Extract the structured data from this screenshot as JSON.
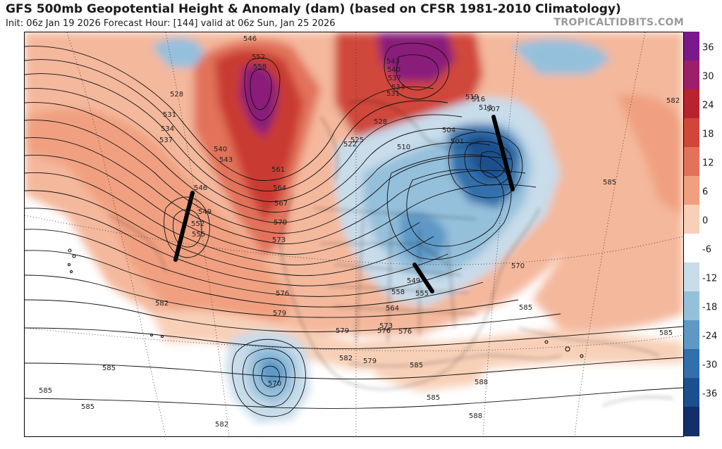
{
  "header": {
    "title": "GFS 500mb Geopotential Height & Anomaly (dam) (based on CFSR 1981-2010 Climatology)",
    "subtitle": "Init: 06z Jan 19 2026   Forecast Hour: [144]   valid at 06z Sun, Jan 25 2026",
    "brand": "TROPICALTIDBITS.COM"
  },
  "colorbar": {
    "ticks": [
      "36",
      "30",
      "24",
      "18",
      "12",
      "6",
      "0",
      "-6",
      "-12",
      "-18",
      "-24",
      "-30",
      "-36"
    ],
    "colors": [
      "#7a1a8a",
      "#9c1f6a",
      "#b8242e",
      "#d0463a",
      "#e2725a",
      "#f0a080",
      "#f8d0b8",
      "#ffffff",
      "#c8dcea",
      "#95c0dc",
      "#5d98c6",
      "#3170ab",
      "#1c4f8e",
      "#122f6a"
    ]
  },
  "map": {
    "contour_labels": [
      "546",
      "552",
      "558",
      "528",
      "531",
      "534",
      "537",
      "540",
      "543",
      "546",
      "549",
      "552",
      "555",
      "561",
      "564",
      "567",
      "570",
      "573",
      "576",
      "579",
      "582",
      "585",
      "507",
      "513",
      "516",
      "519",
      "504",
      "510",
      "522",
      "525",
      "528",
      "531",
      "534",
      "537",
      "540",
      "543",
      "501",
      "549",
      "555",
      "558",
      "564",
      "573",
      "576",
      "579",
      "582",
      "585",
      "588",
      "570",
      "585",
      "582",
      "585",
      "585",
      "585",
      "582",
      "585",
      "570",
      "576",
      "579",
      "585",
      "588"
    ]
  }
}
